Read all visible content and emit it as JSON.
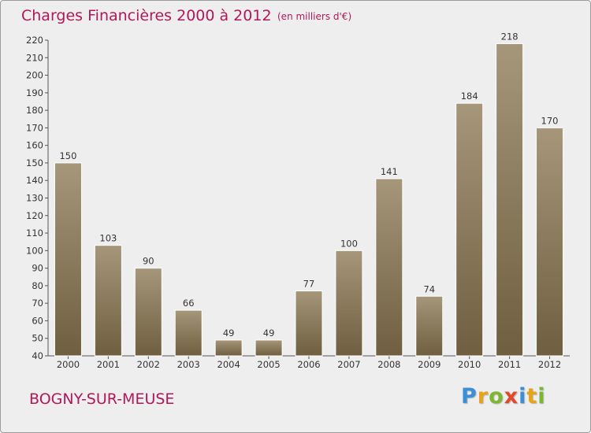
{
  "header": {
    "title": "Charges Financières 2000 à 2012",
    "subtitle": "(en milliers d'€)"
  },
  "footer": {
    "commune": "BOGNY-SUR-MEUSE",
    "logo_letters": [
      "P",
      "r",
      "o",
      "x",
      "i",
      "t",
      "i"
    ]
  },
  "chart_data": {
    "type": "bar",
    "title": "Charges Financières 2000 à 2012",
    "subtitle": "(en milliers d'€)",
    "categories": [
      "2000",
      "2001",
      "2002",
      "2003",
      "2004",
      "2005",
      "2006",
      "2007",
      "2008",
      "2009",
      "2010",
      "2011",
      "2012"
    ],
    "values": [
      150,
      103,
      90,
      66,
      49,
      49,
      77,
      100,
      141,
      74,
      184,
      218,
      170
    ],
    "ylim": [
      40,
      220
    ],
    "yticks": [
      40,
      50,
      60,
      70,
      80,
      90,
      100,
      110,
      120,
      130,
      140,
      150,
      160,
      170,
      180,
      190,
      200,
      210,
      220
    ],
    "grid": false,
    "data_labels": true,
    "colors": {
      "bar_top": "#a6967a",
      "bar_bottom": "#6f5f40",
      "title": "#b0185a",
      "background": "#eeeeee"
    }
  }
}
